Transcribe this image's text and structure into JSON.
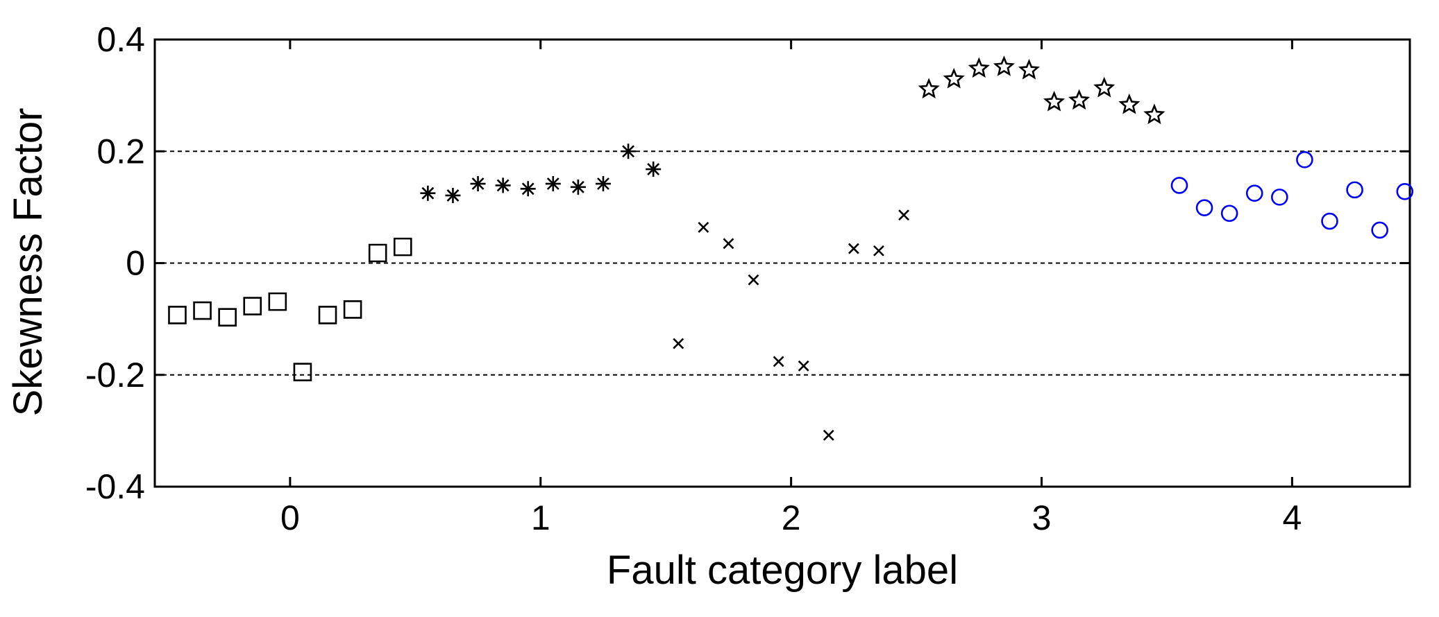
{
  "chart_data": {
    "type": "scatter",
    "xlabel": "Fault category label",
    "ylabel": "Skewness Factor",
    "xlim": [
      -0.54,
      4.47
    ],
    "ylim": [
      -0.4,
      0.4
    ],
    "xticks": [
      0,
      1,
      2,
      3,
      4
    ],
    "yticks": [
      -0.4,
      -0.2,
      0,
      0.2,
      0.4
    ],
    "grid": true,
    "grid_style": "dashed",
    "series": [
      {
        "marker": "square",
        "color": "#000000",
        "x": [
          -0.45,
          -0.35,
          -0.25,
          -0.15,
          -0.05,
          0.05,
          0.15,
          0.25,
          0.35,
          0.45
        ],
        "values": [
          -0.093,
          -0.085,
          -0.097,
          -0.077,
          -0.069,
          -0.195,
          -0.093,
          -0.083,
          0.018,
          0.029
        ]
      },
      {
        "marker": "asterisk",
        "color": "#000000",
        "x": [
          0.55,
          0.65,
          0.75,
          0.85,
          0.95,
          1.05,
          1.15,
          1.25,
          1.35,
          1.45
        ],
        "values": [
          0.125,
          0.121,
          0.142,
          0.139,
          0.133,
          0.142,
          0.136,
          0.142,
          0.2,
          0.168
        ]
      },
      {
        "marker": "x",
        "color": "#000000",
        "x": [
          1.55,
          1.65,
          1.75,
          1.85,
          1.95,
          2.05,
          2.15,
          2.25,
          2.35,
          2.45
        ],
        "values": [
          -0.144,
          0.064,
          0.035,
          -0.03,
          -0.176,
          -0.184,
          -0.308,
          0.026,
          0.022,
          0.086
        ]
      },
      {
        "marker": "pentagram",
        "color": "#000000",
        "x": [
          2.55,
          2.65,
          2.75,
          2.85,
          2.95,
          3.05,
          3.15,
          3.25,
          3.35,
          3.45
        ],
        "values": [
          0.311,
          0.329,
          0.348,
          0.351,
          0.345,
          0.288,
          0.291,
          0.313,
          0.283,
          0.265
        ]
      },
      {
        "marker": "circle",
        "color": "#0000ff",
        "x": [
          3.55,
          3.65,
          3.75,
          3.85,
          3.95,
          4.05,
          4.15,
          4.25,
          4.35,
          4.45
        ],
        "values": [
          0.139,
          0.099,
          0.089,
          0.125,
          0.118,
          0.185,
          0.075,
          0.131,
          0.059,
          0.128
        ]
      }
    ]
  }
}
